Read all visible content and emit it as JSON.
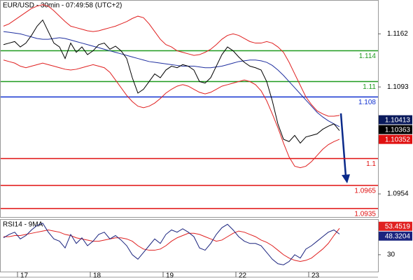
{
  "chart_data": [
    {
      "type": "line",
      "title": "EUR/USD - 30min - 07:49:58 (UTC+2)",
      "categories": [
        null,
        null,
        null,
        "17",
        null,
        null,
        null,
        null,
        null,
        null,
        null,
        null,
        null,
        null,
        null,
        null,
        "18",
        null,
        null,
        null,
        null,
        null,
        null,
        null,
        null,
        null,
        null,
        null,
        null,
        "19",
        null,
        null,
        null,
        null,
        null,
        null,
        null,
        null,
        null,
        null,
        null,
        null,
        "22",
        null,
        null,
        null,
        null,
        null,
        null,
        null,
        null,
        null,
        null,
        null,
        null,
        "23",
        null,
        null,
        null,
        null,
        null
      ],
      "series": [
        {
          "color": "#e02020",
          "values": [
            1.1172,
            1.1175,
            1.118,
            1.1185,
            1.119,
            1.1195,
            1.1198,
            1.12,
            1.1198,
            1.1192,
            1.1185,
            1.1178,
            1.1172,
            1.117,
            1.1168,
            1.1166,
            1.1165,
            1.1166,
            1.1168,
            1.117,
            1.1172,
            1.1175,
            1.1178,
            1.1182,
            1.1185,
            1.1183,
            1.1175,
            1.1165,
            1.1155,
            1.1148,
            1.1145,
            1.114,
            1.1138,
            1.1136,
            1.1134,
            1.1135,
            1.1138,
            1.1142,
            1.1148,
            1.1155,
            1.116,
            1.1162,
            1.116,
            1.1156,
            1.1152,
            1.115,
            1.115,
            1.1152,
            1.115,
            1.1145,
            1.1138,
            1.1125,
            1.111,
            1.1095,
            1.108,
            1.107,
            1.1062,
            1.1058,
            1.1055,
            1.1055,
            1.1056
          ]
        },
        {
          "color": "#e02020",
          "values": [
            1.1128,
            1.1126,
            1.1124,
            1.112,
            1.1118,
            1.112,
            1.1122,
            1.1124,
            1.1122,
            1.112,
            1.1118,
            1.1116,
            1.1115,
            1.1116,
            1.1118,
            1.112,
            1.1122,
            1.112,
            1.1118,
            1.1112,
            1.1102,
            1.1092,
            1.1082,
            1.1074,
            1.1068,
            1.1066,
            1.1068,
            1.1072,
            1.1078,
            1.1085,
            1.109,
            1.1094,
            1.1096,
            1.1094,
            1.109,
            1.1086,
            1.1084,
            1.1086,
            1.109,
            1.1094,
            1.1096,
            1.1098,
            1.11,
            1.1102,
            1.11,
            1.1096,
            1.1088,
            1.1075,
            1.1058,
            1.104,
            1.102,
            1.1002,
            1.099,
            1.0988,
            1.099,
            1.0996,
            1.1004,
            1.1012,
            1.1018,
            1.1022,
            1.1025
          ]
        },
        {
          "color": "#2030a0",
          "values": [
            1.1165,
            1.1164,
            1.1163,
            1.1162,
            1.116,
            1.1158,
            1.1156,
            1.1155,
            1.1155,
            1.1156,
            1.1157,
            1.1156,
            1.1154,
            1.1152,
            1.115,
            1.1148,
            1.1146,
            1.1144,
            1.1142,
            1.114,
            1.1138,
            1.1136,
            1.1134,
            1.1132,
            1.113,
            1.1128,
            1.1126,
            1.1125,
            1.1124,
            1.1123,
            1.1122,
            1.1121,
            1.112,
            1.112,
            1.112,
            1.1119,
            1.1118,
            1.1118,
            1.1119,
            1.112,
            1.1122,
            1.1124,
            1.1126,
            1.1127,
            1.1128,
            1.1128,
            1.1127,
            1.1125,
            1.1121,
            1.1115,
            1.1108,
            1.11,
            1.1092,
            1.1084,
            1.1076,
            1.1068,
            1.106,
            1.1054,
            1.1049,
            1.1045,
            1.10413
          ]
        },
        {
          "color": "#000000",
          "values": [
            1.1148,
            1.115,
            1.1152,
            1.1145,
            1.115,
            1.116,
            1.1172,
            1.118,
            1.1165,
            1.115,
            1.1145,
            1.113,
            1.115,
            1.1138,
            1.1145,
            1.1135,
            1.114,
            1.1148,
            1.115,
            1.1142,
            1.1146,
            1.114,
            1.113,
            1.1105,
            1.1085,
            1.109,
            1.11,
            1.111,
            1.1105,
            1.1115,
            1.112,
            1.1118,
            1.1122,
            1.112,
            1.1115,
            1.11,
            1.1098,
            1.1105,
            1.112,
            1.1135,
            1.1145,
            1.114,
            1.1132,
            1.1125,
            1.112,
            1.1118,
            1.1115,
            1.11,
            1.1075,
            1.1045,
            1.1025,
            1.1022,
            1.103,
            1.102,
            1.1028,
            1.103,
            1.1032,
            1.1038,
            1.1042,
            1.1045,
            1.10363
          ]
        }
      ],
      "ylim": [
        1.0924,
        1.1206
      ],
      "yticks": [
        1.1162,
        1.1093,
        1.0954
      ],
      "levels": [
        {
          "value": 1.114,
          "color": "#1e9a1e"
        },
        {
          "value": 1.11,
          "color": "#1e9a1e"
        },
        {
          "value": 1.108,
          "color": "#1030d0"
        },
        {
          "value": 1.1,
          "color": "#e01010"
        },
        {
          "value": 1.0965,
          "color": "#e01010"
        },
        {
          "value": 1.0935,
          "color": "#e01010"
        }
      ],
      "price_labels": [
        {
          "value": 1.10413,
          "color": "#0a1a5c"
        },
        {
          "value": 1.10363,
          "color": "#000000"
        },
        {
          "value": 1.10352,
          "color": "#e01010"
        }
      ]
    },
    {
      "type": "line",
      "title": "RSI14 - 9MA",
      "series": [
        {
          "color": "#e02020",
          "values": [
            46,
            46,
            47,
            47,
            48,
            49,
            50,
            51,
            52,
            51,
            50,
            48,
            47,
            45,
            44,
            43,
            42,
            42,
            43,
            44,
            45,
            45,
            44,
            42,
            38,
            35,
            34,
            34,
            35,
            38,
            42,
            45,
            47,
            49,
            49,
            48,
            46,
            44,
            42,
            43,
            46,
            49,
            51,
            50,
            48,
            46,
            43,
            41,
            38,
            34,
            30,
            27,
            25,
            24,
            25,
            27,
            31,
            35,
            40,
            47,
            53.4519
          ]
        },
        {
          "color": "#1a237e",
          "values": [
            45,
            48,
            50,
            44,
            47,
            52,
            56,
            58,
            50,
            44,
            42,
            36,
            48,
            40,
            45,
            38,
            42,
            48,
            50,
            44,
            47,
            43,
            38,
            30,
            26,
            32,
            38,
            44,
            40,
            48,
            52,
            50,
            53,
            50,
            46,
            36,
            34,
            40,
            48,
            54,
            57,
            52,
            46,
            42,
            40,
            40,
            38,
            32,
            26,
            22,
            21,
            24,
            30,
            27,
            35,
            38,
            42,
            46,
            50,
            52,
            48.3204
          ]
        }
      ],
      "ylim": [
        15,
        61
      ],
      "yticks": [
        30
      ]
    }
  ]
}
